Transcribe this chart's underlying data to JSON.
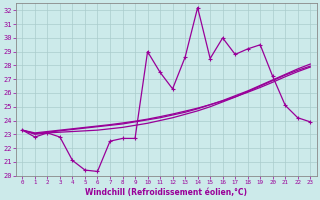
{
  "xlabel": "Windchill (Refroidissement éolien,°C)",
  "bg_color": "#cceaea",
  "line_color": "#990099",
  "grid_color": "#aacccc",
  "xlim": [
    -0.5,
    23.5
  ],
  "ylim": [
    20,
    32.5
  ],
  "yticks": [
    20,
    21,
    22,
    23,
    24,
    25,
    26,
    27,
    28,
    29,
    30,
    31,
    32
  ],
  "xticks": [
    0,
    1,
    2,
    3,
    4,
    5,
    6,
    7,
    8,
    9,
    10,
    11,
    12,
    13,
    14,
    15,
    16,
    17,
    18,
    19,
    20,
    21,
    22,
    23
  ],
  "main_series": [
    23.3,
    22.8,
    23.1,
    22.8,
    21.1,
    20.4,
    20.3,
    22.5,
    22.7,
    22.7,
    29.0,
    27.5,
    26.3,
    28.6,
    32.2,
    28.5,
    30.0,
    28.8,
    29.2,
    29.5,
    27.2,
    25.1,
    24.2,
    23.9
  ],
  "line2": [
    23.3,
    23.0,
    23.1,
    23.15,
    23.2,
    23.25,
    23.3,
    23.4,
    23.5,
    23.65,
    23.8,
    24.0,
    24.2,
    24.45,
    24.7,
    25.0,
    25.35,
    25.7,
    26.1,
    26.5,
    26.9,
    27.3,
    27.65,
    27.95
  ],
  "line3": [
    23.3,
    23.05,
    23.15,
    23.25,
    23.35,
    23.45,
    23.55,
    23.65,
    23.75,
    23.9,
    24.05,
    24.2,
    24.4,
    24.6,
    24.85,
    25.15,
    25.45,
    25.8,
    26.15,
    26.55,
    26.95,
    27.35,
    27.75,
    28.1
  ],
  "line4": [
    23.3,
    23.1,
    23.2,
    23.3,
    23.4,
    23.5,
    23.6,
    23.7,
    23.82,
    23.95,
    24.1,
    24.28,
    24.47,
    24.68,
    24.9,
    25.15,
    25.42,
    25.72,
    26.05,
    26.4,
    26.78,
    27.18,
    27.55,
    27.88
  ]
}
